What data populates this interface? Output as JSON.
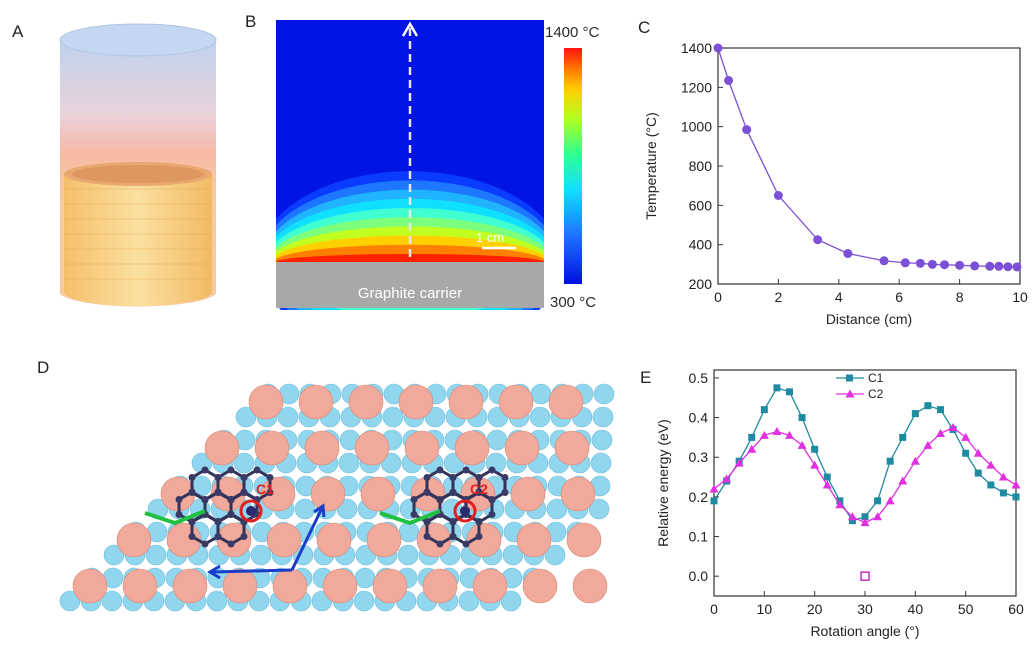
{
  "panels": {
    "a": {
      "letter": "A"
    },
    "b": {
      "letter": "B",
      "colorbar_max": "1400 °C",
      "colorbar_min": "300 °C",
      "scale_label": "1 cm",
      "substrate_label": "Graphite carrier",
      "colors": [
        "#0014e6",
        "#0a3cff",
        "#1e78ff",
        "#20b4ff",
        "#10e0ff",
        "#40ffd0",
        "#7cff7c",
        "#c0ff20",
        "#ffd000",
        "#ff8000",
        "#ff2000"
      ]
    },
    "c": {
      "letter": "C"
    },
    "d": {
      "letter": "D",
      "site1": "C1",
      "site2": "C2"
    },
    "e": {
      "letter": "E"
    }
  },
  "chart_data": [
    {
      "type": "line",
      "panel": "C",
      "xlabel": "Distance (cm)",
      "ylabel": "Temperature (°C)",
      "xlim": [
        0,
        10
      ],
      "ylim": [
        200,
        1400
      ],
      "xticks": [
        0,
        2,
        4,
        6,
        8,
        10
      ],
      "yticks": [
        200,
        400,
        600,
        800,
        1000,
        1200,
        1400
      ],
      "series": [
        {
          "color": "#7b4fd6",
          "x": [
            0,
            0.35,
            0.95,
            2.0,
            3.3,
            4.3,
            5.5,
            6.2,
            6.7,
            7.1,
            7.5,
            8.0,
            8.5,
            9.0,
            9.3,
            9.6,
            9.9
          ],
          "y": [
            1400,
            1235,
            985,
            650,
            425,
            355,
            318,
            308,
            305,
            300,
            298,
            295,
            292,
            290,
            290,
            288,
            287
          ]
        }
      ]
    },
    {
      "type": "line",
      "panel": "E",
      "xlabel": "Rotation angle (°)",
      "ylabel": "Relative energy (eV)",
      "xlim": [
        0,
        60
      ],
      "ylim": [
        -0.05,
        0.52
      ],
      "xticks": [
        0,
        10,
        20,
        30,
        40,
        50,
        60
      ],
      "yticks": [
        0.0,
        0.1,
        0.2,
        0.3,
        0.4,
        0.5
      ],
      "series": [
        {
          "name": "C1",
          "color": "#1f8aa0",
          "marker": "square",
          "x": [
            0,
            2.5,
            5,
            7.5,
            10,
            12.5,
            15,
            17.5,
            20,
            22.5,
            25,
            27.5,
            30,
            32.5,
            35,
            37.5,
            40,
            42.5,
            45,
            47.5,
            50,
            52.5,
            55,
            57.5,
            60
          ],
          "y": [
            0.19,
            0.24,
            0.29,
            0.35,
            0.42,
            0.475,
            0.465,
            0.4,
            0.32,
            0.25,
            0.19,
            0.14,
            0.15,
            0.19,
            0.29,
            0.35,
            0.41,
            0.43,
            0.42,
            0.37,
            0.31,
            0.26,
            0.23,
            0.21,
            0.2
          ]
        },
        {
          "name": "C2",
          "color": "#e030e0",
          "marker": "triangle",
          "x": [
            0,
            2.5,
            5,
            7.5,
            10,
            12.5,
            15,
            17.5,
            20,
            22.5,
            25,
            27.5,
            30,
            32.5,
            35,
            37.5,
            40,
            42.5,
            45,
            47.5,
            50,
            52.5,
            55,
            57.5,
            60
          ],
          "y": [
            0.22,
            0.245,
            0.285,
            0.32,
            0.355,
            0.365,
            0.355,
            0.33,
            0.28,
            0.23,
            0.18,
            0.15,
            0.135,
            0.15,
            0.19,
            0.24,
            0.29,
            0.33,
            0.36,
            0.375,
            0.35,
            0.31,
            0.28,
            0.25,
            0.23
          ]
        }
      ],
      "extra_point": {
        "x": 30,
        "y": 0.0,
        "color": "#c030c0"
      }
    }
  ]
}
